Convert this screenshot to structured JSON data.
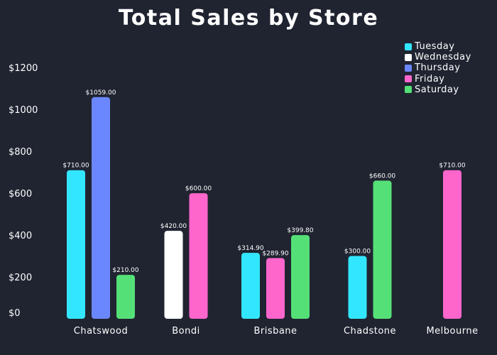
{
  "chart_data": {
    "type": "bar",
    "title": "Total Sales by Store",
    "xlabel": "",
    "ylabel": "",
    "ylim": [
      0,
      1250
    ],
    "yticks": [
      0,
      200,
      400,
      600,
      800,
      1000,
      1200
    ],
    "ytick_labels": [
      "$0",
      "$200",
      "$400",
      "$600",
      "$800",
      "$1000",
      "$1200"
    ],
    "grid": false,
    "legend_position": "top-right",
    "categories": [
      "Chatswood",
      "Bondi",
      "Brisbane",
      "Chadstone",
      "Melbourne"
    ],
    "series": [
      {
        "name": "Tuesday",
        "color": "#33e6ff",
        "values": [
          710.0,
          null,
          314.9,
          300.0,
          null
        ]
      },
      {
        "name": "Wednesday",
        "color": "#ffffff",
        "values": [
          null,
          420.0,
          null,
          null,
          null
        ]
      },
      {
        "name": "Thursday",
        "color": "#6b87ff",
        "values": [
          1059.0,
          null,
          null,
          null,
          null
        ]
      },
      {
        "name": "Friday",
        "color": "#ff66cc",
        "values": [
          null,
          600.0,
          289.9,
          null,
          710.0
        ]
      },
      {
        "name": "Saturday",
        "color": "#55e077",
        "values": [
          210.0,
          null,
          399.8,
          660.0,
          null
        ]
      }
    ],
    "data_labels": {
      "Chatswood": [
        "$710.00",
        "$1059.00",
        "$210.00"
      ],
      "Bondi": [
        "$420.00",
        "$600.00"
      ],
      "Brisbane": [
        "$314.90",
        "$289.90",
        "$399.80"
      ],
      "Chadstone": [
        "$300.00",
        "$660.00"
      ],
      "Melbourne": [
        "$710.00"
      ]
    }
  }
}
